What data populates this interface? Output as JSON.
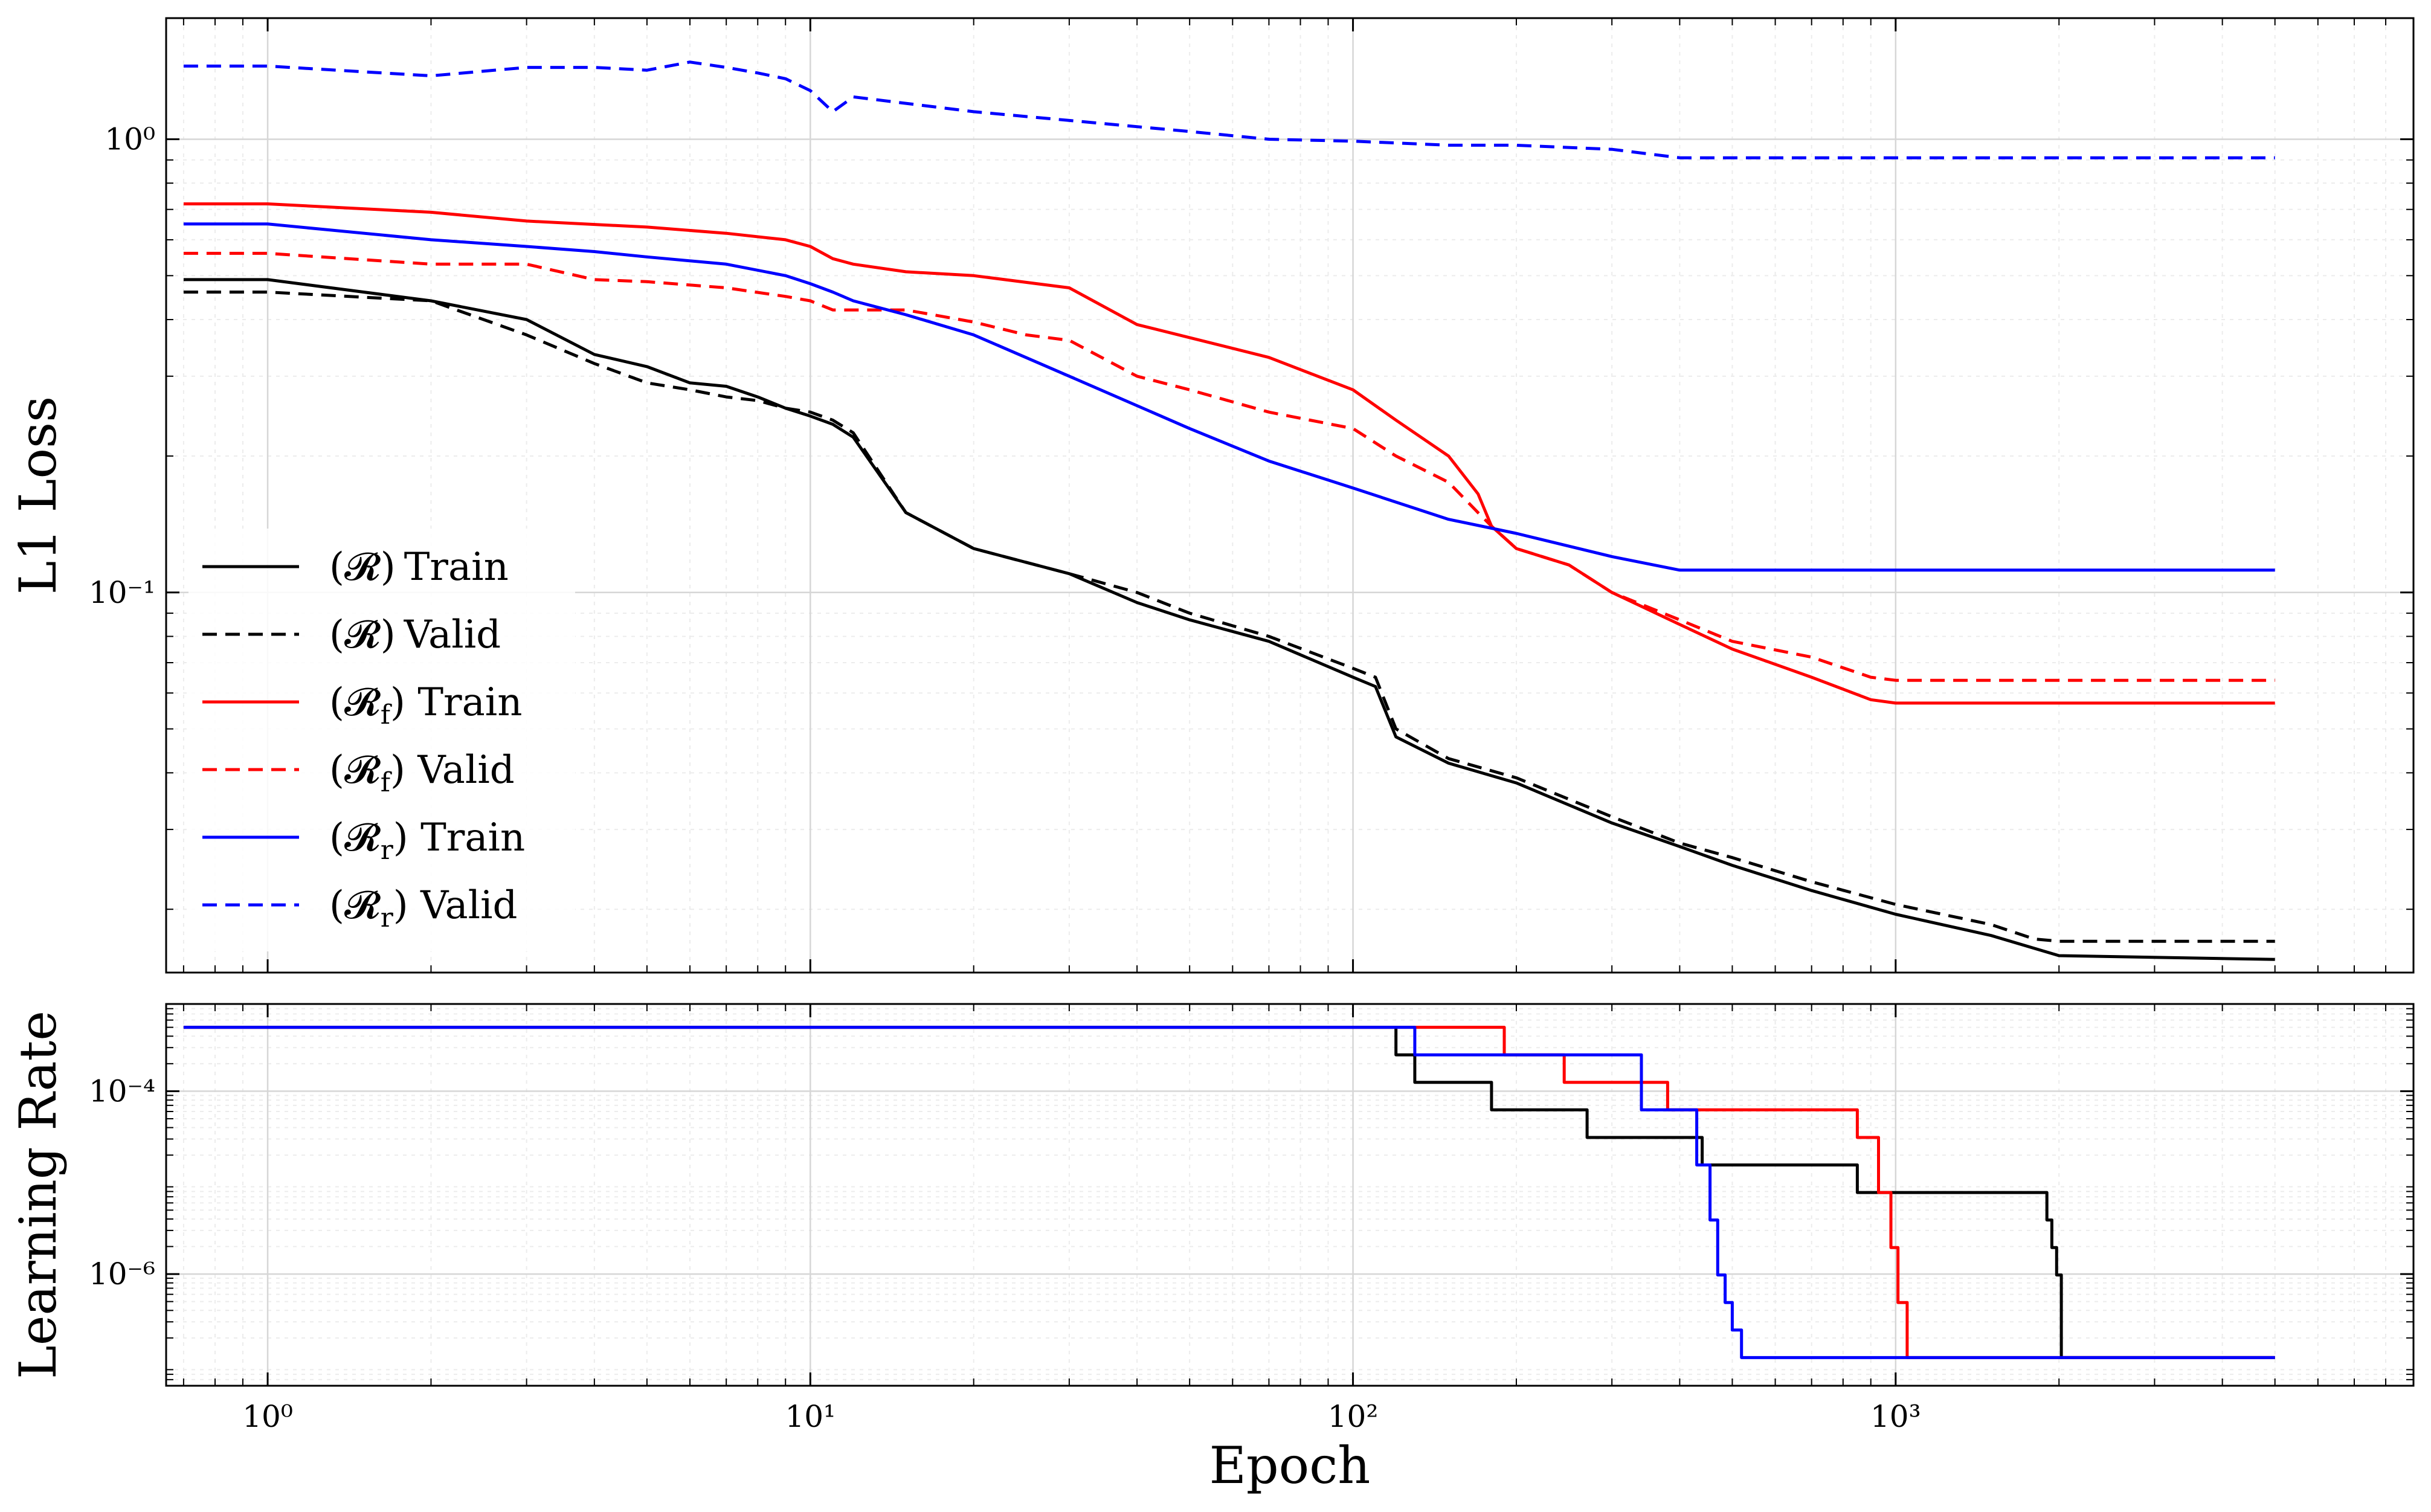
{
  "chart_data": [
    {
      "type": "line",
      "title": "",
      "xlabel": "Epoch",
      "ylabel": "L1 Loss",
      "xscale": "log",
      "yscale": "log",
      "xlim": [
        0.65,
        9000
      ],
      "ylim": [
        0.0145,
        1.85
      ],
      "x_ticks": [
        {
          "value": 1,
          "label": "10⁰"
        },
        {
          "value": 10,
          "label": "10¹"
        },
        {
          "value": 100,
          "label": "10²"
        },
        {
          "value": 1000,
          "label": "10³"
        }
      ],
      "y_ticks": [
        {
          "value": 1,
          "label": "10⁰"
        },
        {
          "value": 0.1,
          "label": "10⁻¹"
        }
      ],
      "grid": true,
      "legend": {
        "position": "lower-left",
        "entries": [
          {
            "base": "(𝓡)",
            "sub": "",
            "label": "Train",
            "color": "#000000",
            "style": "solid"
          },
          {
            "base": "(𝓡)",
            "sub": "",
            "label": "Valid",
            "color": "#000000",
            "style": "dashed"
          },
          {
            "base": "(𝓡",
            "sub": "f",
            "label": ") Train",
            "color": "#ff0000",
            "style": "solid"
          },
          {
            "base": "(𝓡",
            "sub": "f",
            "label": ") Valid",
            "color": "#ff0000",
            "style": "dashed"
          },
          {
            "base": "(𝓡",
            "sub": "r",
            "label": ") Train",
            "color": "#0000ff",
            "style": "solid"
          },
          {
            "base": "(𝓡",
            "sub": "r",
            "label": ") Valid",
            "color": "#0000ff",
            "style": "dashed"
          }
        ]
      },
      "series": [
        {
          "color": "#000000",
          "style": "solid",
          "x": [
            0.7,
            1,
            2,
            3,
            4,
            5,
            6,
            7,
            8,
            9,
            10,
            11,
            12,
            15,
            20,
            30,
            40,
            50,
            70,
            100,
            110,
            120,
            150,
            200,
            300,
            400,
            500,
            700,
            1000,
            1500,
            2000,
            5000
          ],
          "y": [
            0.49,
            0.49,
            0.44,
            0.4,
            0.335,
            0.315,
            0.29,
            0.285,
            0.27,
            0.255,
            0.245,
            0.235,
            0.22,
            0.15,
            0.125,
            0.11,
            0.095,
            0.087,
            0.078,
            0.065,
            0.062,
            0.048,
            0.042,
            0.038,
            0.031,
            0.0275,
            0.025,
            0.022,
            0.0195,
            0.0175,
            0.0158,
            0.0155
          ]
        },
        {
          "color": "#000000",
          "style": "dashed",
          "x": [
            0.7,
            1,
            2,
            3,
            4,
            5,
            6,
            7,
            8,
            9,
            10,
            11,
            12,
            15,
            20,
            30,
            40,
            50,
            70,
            100,
            110,
            120,
            150,
            200,
            300,
            400,
            500,
            700,
            1000,
            1500,
            1800,
            2000,
            5000
          ],
          "y": [
            0.46,
            0.46,
            0.44,
            0.37,
            0.32,
            0.29,
            0.28,
            0.27,
            0.265,
            0.255,
            0.25,
            0.24,
            0.225,
            0.15,
            0.125,
            0.11,
            0.1,
            0.09,
            0.08,
            0.068,
            0.065,
            0.05,
            0.043,
            0.039,
            0.032,
            0.028,
            0.026,
            0.023,
            0.0205,
            0.0185,
            0.0172,
            0.017,
            0.017
          ]
        },
        {
          "color": "#ff0000",
          "style": "solid",
          "x": [
            0.7,
            1,
            2,
            3,
            5,
            7,
            9,
            10,
            11,
            12,
            15,
            20,
            30,
            40,
            50,
            70,
            100,
            120,
            150,
            170,
            180,
            200,
            250,
            300,
            400,
            500,
            700,
            900,
            1000,
            2000,
            5000
          ],
          "y": [
            0.72,
            0.72,
            0.69,
            0.66,
            0.64,
            0.62,
            0.6,
            0.58,
            0.545,
            0.53,
            0.51,
            0.5,
            0.47,
            0.39,
            0.365,
            0.33,
            0.28,
            0.24,
            0.2,
            0.165,
            0.14,
            0.125,
            0.115,
            0.1,
            0.085,
            0.075,
            0.065,
            0.058,
            0.057,
            0.057,
            0.057
          ]
        },
        {
          "color": "#ff0000",
          "style": "dashed",
          "x": [
            0.7,
            1,
            2,
            3,
            4,
            5,
            7,
            9,
            10,
            11,
            15,
            20,
            25,
            30,
            40,
            50,
            70,
            100,
            120,
            150,
            170,
            180,
            200,
            250,
            300,
            400,
            500,
            700,
            900,
            1000,
            2000,
            5000
          ],
          "y": [
            0.56,
            0.56,
            0.53,
            0.53,
            0.49,
            0.485,
            0.47,
            0.45,
            0.44,
            0.42,
            0.42,
            0.395,
            0.37,
            0.36,
            0.3,
            0.28,
            0.25,
            0.23,
            0.2,
            0.175,
            0.15,
            0.14,
            0.125,
            0.115,
            0.1,
            0.087,
            0.078,
            0.072,
            0.065,
            0.064,
            0.064,
            0.064
          ]
        },
        {
          "color": "#0000ff",
          "style": "solid",
          "x": [
            0.7,
            1,
            2,
            3,
            4,
            5,
            7,
            9,
            10,
            11,
            12,
            15,
            20,
            30,
            50,
            70,
            100,
            150,
            200,
            300,
            400,
            500,
            1000,
            5000
          ],
          "y": [
            0.65,
            0.65,
            0.6,
            0.58,
            0.565,
            0.55,
            0.53,
            0.5,
            0.48,
            0.46,
            0.44,
            0.41,
            0.37,
            0.3,
            0.23,
            0.195,
            0.17,
            0.145,
            0.135,
            0.12,
            0.112,
            0.112,
            0.112,
            0.112
          ]
        },
        {
          "color": "#0000ff",
          "style": "dashed",
          "x": [
            0.7,
            1,
            2,
            3,
            4,
            5,
            6,
            7,
            8,
            9,
            10,
            11,
            12,
            15,
            20,
            30,
            50,
            70,
            100,
            150,
            200,
            300,
            400,
            500,
            1000,
            5000
          ],
          "y": [
            1.45,
            1.45,
            1.38,
            1.44,
            1.44,
            1.42,
            1.48,
            1.44,
            1.4,
            1.36,
            1.28,
            1.15,
            1.24,
            1.2,
            1.15,
            1.1,
            1.04,
            1.0,
            0.99,
            0.97,
            0.97,
            0.95,
            0.91,
            0.91,
            0.91,
            0.91
          ]
        }
      ]
    },
    {
      "type": "line",
      "title": "",
      "xlabel": "Epoch",
      "ylabel": "Learning Rate",
      "xscale": "log",
      "yscale": "log",
      "xlim": [
        0.65,
        9000
      ],
      "ylim": [
        6e-08,
        0.0009
      ],
      "y_ticks": [
        {
          "value": 0.0001,
          "label": "10⁻⁴"
        },
        {
          "value": 1e-06,
          "label": "10⁻⁶"
        }
      ],
      "grid": true,
      "series": [
        {
          "color": "#000000",
          "style": "step",
          "x": [
            0.7,
            120,
            120,
            130,
            130,
            180,
            180,
            270,
            270,
            440,
            440,
            850,
            850,
            1900,
            1900,
            1940,
            1940,
            1980,
            1980,
            2020,
            2020,
            5000
          ],
          "y": [
            0.0005,
            0.0005,
            0.00025,
            0.00025,
            0.000125,
            0.000125,
            6.25e-05,
            6.25e-05,
            3.12e-05,
            3.12e-05,
            1.56e-05,
            1.56e-05,
            7.8e-06,
            7.8e-06,
            3.9e-06,
            3.9e-06,
            1.95e-06,
            1.95e-06,
            9.77e-07,
            9.77e-07,
            1.22e-07,
            1.22e-07
          ]
        },
        {
          "color": "#ff0000",
          "style": "step",
          "x": [
            0.7,
            190,
            190,
            245,
            245,
            380,
            380,
            850,
            850,
            930,
            930,
            980,
            980,
            1010,
            1010,
            1050,
            1050,
            5000
          ],
          "y": [
            0.0005,
            0.0005,
            0.00025,
            0.00025,
            0.000125,
            0.000125,
            6.25e-05,
            6.25e-05,
            3.12e-05,
            3.12e-05,
            7.8e-06,
            7.8e-06,
            1.95e-06,
            1.95e-06,
            4.88e-07,
            4.88e-07,
            1.22e-07,
            1.22e-07
          ]
        },
        {
          "color": "#0000ff",
          "style": "step",
          "x": [
            0.7,
            130,
            130,
            340,
            340,
            430,
            430,
            455,
            455,
            470,
            470,
            485,
            485,
            500,
            500,
            520,
            520,
            5000
          ],
          "y": [
            0.0005,
            0.0005,
            0.00025,
            0.00025,
            6.25e-05,
            6.25e-05,
            1.56e-05,
            1.56e-05,
            3.9e-06,
            3.9e-06,
            9.77e-07,
            9.77e-07,
            4.88e-07,
            4.88e-07,
            2.44e-07,
            2.44e-07,
            1.22e-07,
            1.22e-07
          ]
        }
      ]
    }
  ]
}
